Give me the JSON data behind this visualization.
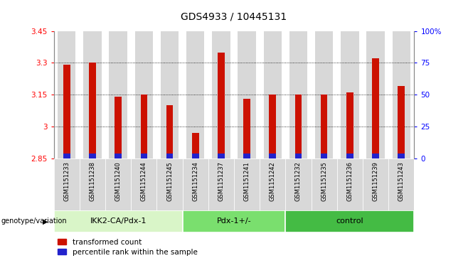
{
  "title": "GDS4933 / 10445131",
  "samples": [
    "GSM1151233",
    "GSM1151238",
    "GSM1151240",
    "GSM1151244",
    "GSM1151245",
    "GSM1151234",
    "GSM1151237",
    "GSM1151241",
    "GSM1151242",
    "GSM1151232",
    "GSM1151235",
    "GSM1151236",
    "GSM1151239",
    "GSM1151243"
  ],
  "red_values": [
    3.29,
    3.3,
    3.14,
    3.15,
    3.1,
    2.97,
    3.35,
    3.13,
    3.15,
    3.15,
    3.15,
    3.16,
    3.32,
    3.19
  ],
  "blue_heights": [
    0.025,
    0.025,
    0.025,
    0.025,
    0.025,
    0.025,
    0.025,
    0.025,
    0.025,
    0.025,
    0.025,
    0.025,
    0.025,
    0.025
  ],
  "base": 2.85,
  "ylim_left": [
    2.85,
    3.45
  ],
  "ylim_right": [
    0,
    100
  ],
  "yticks_left": [
    2.85,
    3.0,
    3.15,
    3.3,
    3.45
  ],
  "ytick_labels_left": [
    "2.85",
    "3",
    "3.15",
    "3.3",
    "3.45"
  ],
  "yticks_right": [
    0,
    25,
    50,
    75,
    100
  ],
  "ytick_labels_right": [
    "0",
    "25",
    "50",
    "75",
    "100%"
  ],
  "groups": [
    {
      "label": "IKK2-CA/Pdx-1",
      "start": 0,
      "end": 5,
      "color": "#d9f5c8"
    },
    {
      "label": "Pdx-1+/-",
      "start": 5,
      "end": 9,
      "color": "#7adf6e"
    },
    {
      "label": "control",
      "start": 9,
      "end": 14,
      "color": "#44bb44"
    }
  ],
  "group_label_prefix": "genotype/variation",
  "red_color": "#cc1100",
  "blue_color": "#2222cc",
  "bar_bg": "#d8d8d8",
  "dotted_line_color": "#000000",
  "title_fontsize": 10,
  "tick_fontsize": 7.5,
  "legend_red": "transformed count",
  "legend_blue": "percentile rank within the sample"
}
